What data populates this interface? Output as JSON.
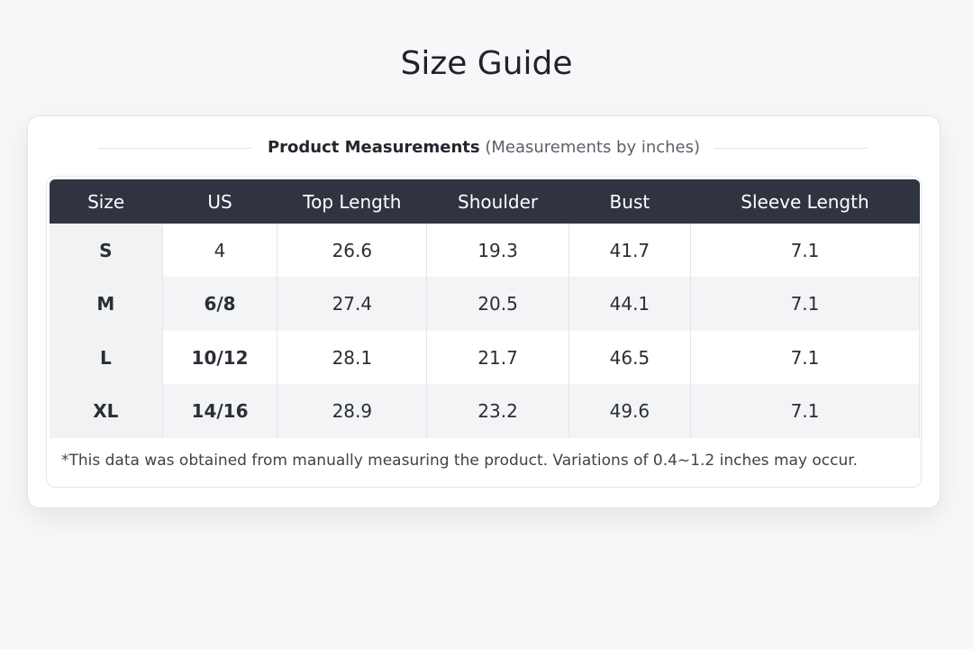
{
  "header": {
    "title": "Size Guide"
  },
  "subtitle": {
    "label": "Product Measurements",
    "note": "(Measurements by inches)"
  },
  "table": {
    "columns": [
      "Size",
      "US",
      "Top Length",
      "Shoulder",
      "Bust",
      "Sleeve Length"
    ],
    "rows": [
      [
        "S",
        "4",
        "26.6",
        "19.3",
        "41.7",
        "7.1"
      ],
      [
        "M",
        "6/8",
        "27.4",
        "20.5",
        "44.1",
        "7.1"
      ],
      [
        "L",
        "10/12",
        "28.1",
        "21.7",
        "46.5",
        "7.1"
      ],
      [
        "XL",
        "14/16",
        "28.9",
        "23.2",
        "49.6",
        "7.1"
      ]
    ]
  },
  "footnote": "*This data was obtained from manually measuring the product. Variations of 0.4~1.2 inches may occur."
}
